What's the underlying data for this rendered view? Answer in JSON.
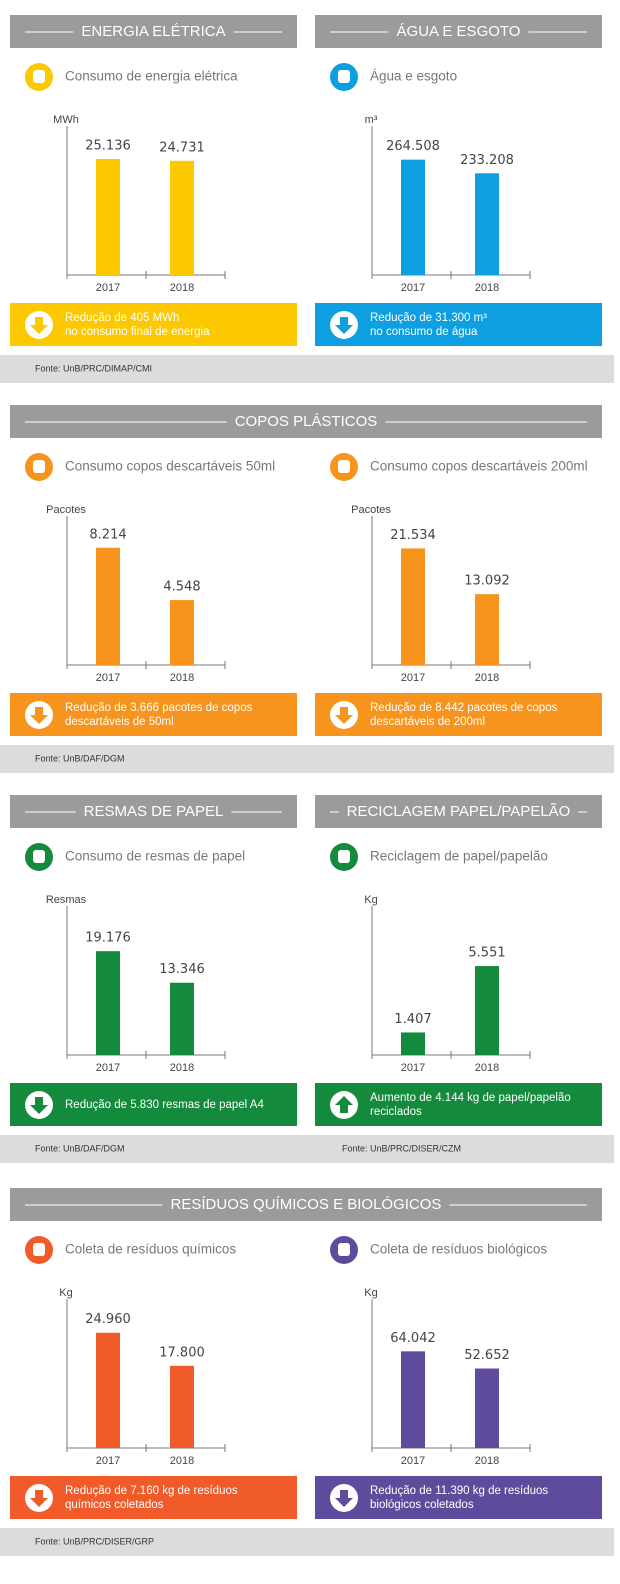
{
  "rows": [
    {
      "headers": [
        "ENERGIA ELÉTRICA",
        "ÁGUA E ESGOTO"
      ],
      "sources": [
        "Fonte: UnB/PRC/DIMAP/CMI"
      ]
    },
    {
      "headers": [
        "COPOS PLÁSTICOS"
      ],
      "sources": [
        "Fonte: UnB/DAF/DGM"
      ]
    },
    {
      "headers": [
        "RESMAS DE PAPEL",
        "RECICLAGEM PAPEL/PAPELÃO"
      ],
      "sources": [
        "Fonte: UnB/DAF/DGM",
        "Fonte: UnB/PRC/DISER/CZM"
      ]
    },
    {
      "headers": [
        "RESÍDUOS QUÍMICOS E BIOLÓGICOS"
      ],
      "sources": [
        "Fonte: UnB/PRC/DISER/GRP"
      ]
    }
  ],
  "chart_data": [
    {
      "type": "bar",
      "title": "Consumo de energia elétrica",
      "y_label": "MWh",
      "categories": [
        "2017",
        "2018"
      ],
      "values": [
        25136,
        24731
      ],
      "value_labels": [
        "25.136",
        "24.731"
      ],
      "color": "#fcc800",
      "ylim": [
        0,
        34000
      ],
      "trend": "down",
      "note": [
        "Redução de 405 MWh",
        "no consumo final de energia"
      ]
    },
    {
      "type": "bar",
      "title": "Água e esgoto",
      "y_label": "m³",
      "categories": [
        "2017",
        "2018"
      ],
      "values": [
        264508,
        233208
      ],
      "value_labels": [
        "264.508",
        "233.208"
      ],
      "color": "#0e9fe0",
      "ylim": [
        0,
        360000
      ],
      "trend": "down",
      "note": [
        "Redução de 31.300 m³",
        "no consumo de água"
      ]
    },
    {
      "type": "bar",
      "title": "Consumo copos descartáveis 50ml",
      "y_label": "Pacotes",
      "categories": [
        "2017",
        "2018"
      ],
      "values": [
        8214,
        4548
      ],
      "value_labels": [
        "8.214",
        "4.548"
      ],
      "color": "#f7941d",
      "ylim": [
        0,
        11000
      ],
      "trend": "down",
      "note": [
        "Redução de 3.666 pacotes de copos",
        "descartáveis de 50ml"
      ]
    },
    {
      "type": "bar",
      "title": "Consumo copos descartáveis 200ml",
      "y_label": "Pacotes",
      "categories": [
        "2017",
        "2018"
      ],
      "values": [
        21534,
        13092
      ],
      "value_labels": [
        "21.534",
        "13.092"
      ],
      "color": "#f7941d",
      "ylim": [
        0,
        29000
      ],
      "trend": "down",
      "note": [
        "Redução de 8.442 pacotes de copos",
        "descartáveis de 200ml"
      ]
    },
    {
      "type": "bar",
      "title": "Consumo de resmas de papel",
      "y_label": "Resmas",
      "categories": [
        "2017",
        "2018"
      ],
      "values": [
        19176,
        13346
      ],
      "value_labels": [
        "19.176",
        "13.346"
      ],
      "color": "#138a3c",
      "ylim": [
        0,
        29000
      ],
      "trend": "down",
      "note": [
        "Redução de 5.830 resmas de papel A4"
      ]
    },
    {
      "type": "bar",
      "title": "Reciclagem de papel/papelão",
      "y_label": "Kg",
      "categories": [
        "2017",
        "2018"
      ],
      "values": [
        1407,
        5551
      ],
      "value_labels": [
        "1.407",
        "5.551"
      ],
      "color": "#138a3c",
      "ylim": [
        0,
        9800
      ],
      "trend": "up",
      "note": [
        "Aumento de 4.144 kg de papel/papelão",
        "reciclados"
      ]
    },
    {
      "type": "bar",
      "title": "Coleta de resíduos químicos",
      "y_label": "Kg",
      "categories": [
        "2017",
        "2018"
      ],
      "values": [
        24960,
        17800
      ],
      "value_labels": [
        "24.960",
        "17.800"
      ],
      "color": "#f15a29",
      "ylim": [
        0,
        34000
      ],
      "trend": "down",
      "note": [
        "Redução de 7.160 kg de resíduos",
        "químicos coletados"
      ]
    },
    {
      "type": "bar",
      "title": "Coleta de resíduos biológicos",
      "y_label": "Kg",
      "categories": [
        "2017",
        "2018"
      ],
      "values": [
        64042,
        52652
      ],
      "value_labels": [
        "64.042",
        "52.652"
      ],
      "color": "#5f4b9c",
      "ylim": [
        0,
        104000
      ],
      "trend": "down",
      "note": [
        "Redução de 11.390 kg de resíduos",
        "biológicos coletados"
      ]
    }
  ]
}
